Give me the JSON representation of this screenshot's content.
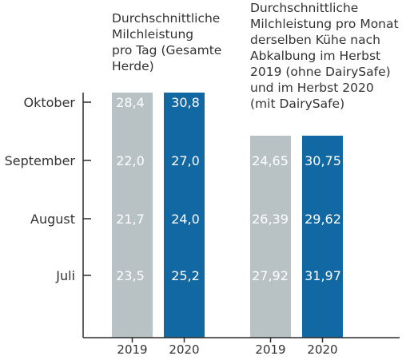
{
  "chart_data": [
    {
      "type": "table",
      "title": "Durchschnittliche\nMilchleistung\npro Tag (Gesamte\nHerde)",
      "categories": [
        "Juli",
        "August",
        "September",
        "Oktober"
      ],
      "series": [
        {
          "name": "2019",
          "color": "#b8c2c4",
          "values": [
            "23,5",
            "21,7",
            "22,0",
            "28,4"
          ]
        },
        {
          "name": "2020",
          "color": "#1268a3",
          "values": [
            "25,2",
            "24,0",
            "27,0",
            "30,8"
          ]
        }
      ]
    },
    {
      "type": "table",
      "title": "Durchschnittliche\nMilchleistung pro Monat\nderselben Kühe nach\nAbkalbung im Herbst\n2019 (ohne DairySafe)\nund im Herbst 2020\n(mit DairySafe)",
      "categories": [
        "Juli",
        "August",
        "September"
      ],
      "series": [
        {
          "name": "2019",
          "color": "#b8c2c4",
          "values": [
            "27,92",
            "26,39",
            "24,65"
          ]
        },
        {
          "name": "2020",
          "color": "#1268a3",
          "values": [
            "31,97",
            "29,62",
            "30,75"
          ]
        }
      ]
    }
  ]
}
